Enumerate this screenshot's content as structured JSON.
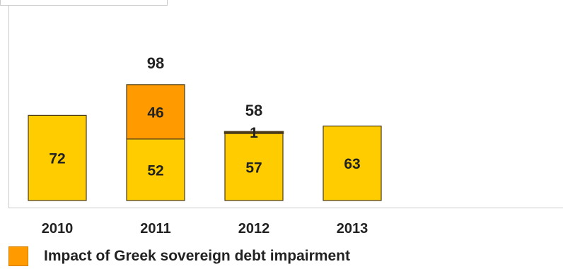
{
  "chart_data": {
    "type": "bar",
    "stacked": true,
    "categories": [
      "2010",
      "2011",
      "2012",
      "2013"
    ],
    "series": [
      {
        "values": [
          72,
          52,
          57,
          63
        ],
        "color": "#ffcc00"
      },
      {
        "name": "Impact of Greek sovereign debt impairment",
        "values": [
          0,
          46,
          1,
          0
        ],
        "color": "#ff9a00"
      }
    ],
    "segment_labels": [
      [
        "72",
        "52",
        "57",
        "63"
      ],
      [
        "",
        "46",
        "1",
        ""
      ]
    ],
    "totals": [
      "",
      "98",
      "58",
      ""
    ],
    "ylim": [
      0,
      120
    ],
    "grid": false,
    "legend_position": "bottom-left"
  }
}
